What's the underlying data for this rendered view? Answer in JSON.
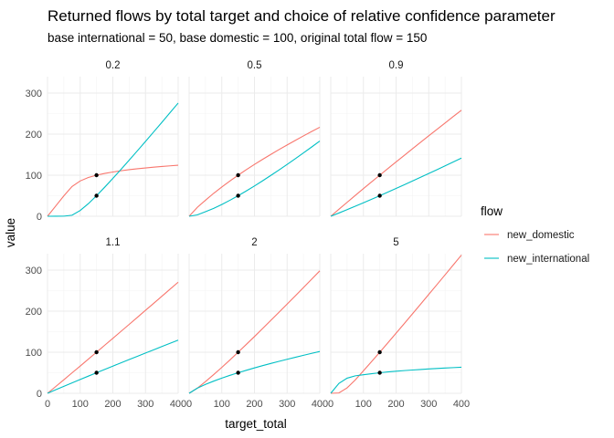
{
  "chart_data": {
    "type": "line",
    "title": "Returned flows by total target and choice of relative confidence parameter",
    "subtitle": "base international = 50, base domestic = 100, original total flow = 150",
    "xlabel": "target_total",
    "ylabel": "value",
    "xlim": [
      0,
      400
    ],
    "ylim": [
      0,
      340
    ],
    "x_ticks": [
      0,
      100,
      200,
      300,
      400
    ],
    "y_ticks": [
      0,
      100,
      200,
      300
    ],
    "grid": true,
    "legend": {
      "title": "flow",
      "placement": "right",
      "entries": [
        {
          "name": "new_domestic",
          "color": "#F8766D"
        },
        {
          "name": "new_international",
          "color": "#00BFC4"
        }
      ]
    },
    "points": [
      {
        "x": 150,
        "y": 100
      },
      {
        "x": 150,
        "y": 50
      }
    ],
    "x": [
      0,
      25,
      50,
      75,
      100,
      125,
      150,
      175,
      200,
      225,
      250,
      275,
      300,
      325,
      350,
      375,
      400
    ],
    "panels": [
      {
        "label": "0.2",
        "series": [
          {
            "name": "new_domestic",
            "values": [
              0,
              24.9,
              49.7,
              72.5,
              86.0,
              94.4,
              100.0,
              104.3,
              107.8,
              110.8,
              113.4,
              115.7,
              117.7,
              119.6,
              121.3,
              122.8,
              124.3
            ]
          },
          {
            "name": "new_international",
            "values": [
              0,
              0.1,
              0.3,
              2.5,
              14.0,
              30.6,
              50.0,
              70.7,
              92.2,
              114.2,
              136.6,
              159.3,
              182.3,
              205.4,
              228.7,
              252.2,
              275.7
            ]
          }
        ]
      },
      {
        "label": "0.5",
        "series": [
          {
            "name": "new_domestic",
            "values": [
              0,
              21.7,
              39.0,
              55.8,
              71.3,
              86.0,
              100.0,
              113.4,
              126.2,
              138.6,
              150.6,
              162.3,
              173.7,
              184.8,
              195.7,
              206.4,
              216.8
            ]
          },
          {
            "name": "new_international",
            "values": [
              0,
              3.3,
              11.0,
              19.2,
              28.7,
              39.0,
              50.0,
              61.6,
              73.8,
              86.4,
              99.4,
              112.7,
              126.3,
              140.2,
              154.3,
              168.6,
              183.2
            ]
          }
        ]
      },
      {
        "label": "0.9",
        "series": [
          {
            "name": "new_domestic",
            "values": [
              0,
              17.1,
              33.9,
              50.6,
              67.3,
              83.7,
              100.0,
              116.2,
              132.3,
              148.3,
              164.2,
              180.1,
              195.9,
              211.6,
              227.2,
              242.8,
              258.3
            ]
          },
          {
            "name": "new_international",
            "values": [
              0,
              7.9,
              16.1,
              24.4,
              32.7,
              41.3,
              50.0,
              58.8,
              67.7,
              76.7,
              85.8,
              94.9,
              104.1,
              113.4,
              122.8,
              132.2,
              141.7
            ]
          }
        ]
      },
      {
        "label": "1.1",
        "series": [
          {
            "name": "new_domestic",
            "values": [
              0,
              16.4,
              33.0,
              49.7,
              66.3,
              83.2,
              100.0,
              116.9,
              133.8,
              150.8,
              167.8,
              184.9,
              202.0,
              219.1,
              236.2,
              253.4,
              270.6
            ]
          },
          {
            "name": "new_international",
            "values": [
              0,
              8.6,
              17.0,
              25.3,
              33.7,
              41.8,
              50.0,
              58.1,
              66.2,
              74.2,
              82.2,
              90.1,
              98.0,
              105.9,
              113.8,
              121.6,
              129.4
            ]
          }
        ]
      },
      {
        "label": "2",
        "series": [
          {
            "name": "new_domestic",
            "values": [
              0,
              12.5,
              28.4,
              45.4,
              63.1,
              81.3,
              100.0,
              119.0,
              138.2,
              157.7,
              177.4,
              197.2,
              217.2,
              237.3,
              257.5,
              277.8,
              298.2
            ]
          },
          {
            "name": "new_international",
            "values": [
              0,
              12.5,
              21.6,
              29.6,
              36.9,
              43.7,
              50.0,
              56.0,
              61.8,
              67.3,
              72.6,
              77.8,
              82.8,
              87.7,
              92.5,
              97.2,
              101.8
            ]
          }
        ]
      },
      {
        "label": "5",
        "series": [
          {
            "name": "new_domestic",
            "values": [
              0,
              0.8,
              13.2,
              32.5,
              54.8,
              77.3,
              100.0,
              123.0,
              146.3,
              169.7,
              193.3,
              217.0,
              240.8,
              264.6,
              288.5,
              312.5,
              336.5
            ]
          },
          {
            "name": "new_international",
            "values": [
              0,
              24.2,
              36.8,
              42.5,
              45.2,
              47.7,
              50.0,
              52.0,
              53.7,
              55.3,
              56.7,
              58.0,
              59.2,
              60.4,
              61.5,
              62.5,
              63.5
            ]
          }
        ]
      }
    ]
  }
}
